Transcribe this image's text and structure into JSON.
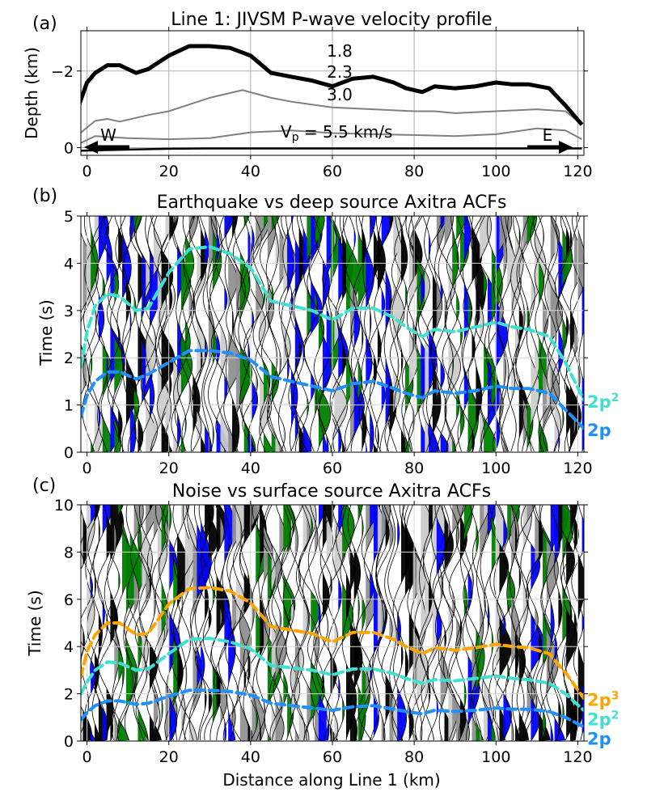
{
  "chart_data": [
    {
      "panel": "(a)",
      "type": "line",
      "title": "Line 1: JIVSM P-wave velocity profile",
      "ylabel": "Depth (km)",
      "xlabel": "",
      "xlim": [
        -1.5,
        121.5
      ],
      "ylim": [
        -3.05,
        0.2
      ],
      "xticks": [
        0,
        20,
        40,
        60,
        80,
        100,
        120
      ],
      "yticks": [
        0,
        -2
      ],
      "grid": true,
      "annotations": {
        "west": "W",
        "east": "E",
        "vp_prefix": "V",
        "vp_sub": "p",
        "vp_suffix": " = 5.5 km/s"
      },
      "series": [
        {
          "label": "1.8",
          "color": "#000000",
          "x": [
            -2,
            10,
            20,
            30,
            40,
            50,
            60,
            70,
            80,
            90,
            100,
            110,
            121
          ],
          "y": [
            0.08,
            0.05,
            0.03,
            0.02,
            0.02,
            0.02,
            0.02,
            0.02,
            0.02,
            0.02,
            0.02,
            0.02,
            0.02
          ]
        },
        {
          "label": "",
          "color": "#808080",
          "x": [
            -2,
            2,
            10,
            20,
            30,
            40,
            50,
            60,
            70,
            80,
            90,
            100,
            110,
            117,
            121
          ],
          "y": [
            -0.1,
            -0.3,
            -0.25,
            -0.22,
            -0.25,
            -0.4,
            -0.45,
            -0.38,
            -0.35,
            -0.33,
            -0.3,
            -0.35,
            -0.5,
            -0.45,
            -0.22
          ]
        },
        {
          "label": "2.3",
          "color": "#808080",
          "x": [
            -2,
            2,
            5,
            8,
            15,
            20,
            30,
            38,
            45,
            50,
            60,
            70,
            80,
            85,
            90,
            100,
            110,
            117,
            121
          ],
          "y": [
            -0.35,
            -0.7,
            -0.75,
            -0.68,
            -0.85,
            -0.95,
            -1.3,
            -1.5,
            -1.3,
            -1.2,
            -1.05,
            -1.0,
            -0.95,
            -0.95,
            -0.9,
            -0.95,
            -1.0,
            -0.95,
            -0.6
          ]
        },
        {
          "label": "3.0",
          "color": "#000000",
          "x": [
            -2,
            0,
            2,
            5,
            8,
            12,
            15,
            20,
            25,
            30,
            35,
            40,
            45,
            50,
            55,
            60,
            65,
            70,
            75,
            78,
            82,
            85,
            90,
            95,
            100,
            104,
            108,
            113,
            117,
            121
          ],
          "y": [
            -1.1,
            -1.7,
            -1.95,
            -2.15,
            -2.15,
            -1.95,
            -2.05,
            -2.4,
            -2.65,
            -2.65,
            -2.6,
            -2.4,
            -1.95,
            -1.85,
            -1.75,
            -1.6,
            -1.8,
            -1.85,
            -1.7,
            -1.55,
            -1.45,
            -1.6,
            -1.55,
            -1.6,
            -1.7,
            -1.65,
            -1.65,
            -1.55,
            -1.1,
            -0.6
          ]
        }
      ]
    },
    {
      "panel": "(b)",
      "type": "line",
      "title": "Earthquake vs deep source Axitra ACFs",
      "ylabel": "Time (s)",
      "xlabel": "",
      "xlim": [
        -1.5,
        121.5
      ],
      "ylim": [
        5,
        0
      ],
      "xticks": [
        0,
        20,
        40,
        60,
        80,
        100,
        120
      ],
      "yticks": [
        0,
        1,
        2,
        3,
        4,
        5
      ],
      "grid": true,
      "series": [
        {
          "label": "2p",
          "sup": "",
          "color": "#1e90ff",
          "x": [
            -1.5,
            0,
            2,
            5,
            8,
            12,
            15,
            20,
            25,
            30,
            35,
            40,
            45,
            50,
            55,
            60,
            65,
            70,
            75,
            78,
            82,
            85,
            90,
            95,
            100,
            104,
            108,
            113,
            117,
            121.5
          ],
          "y": [
            0.75,
            1.2,
            1.5,
            1.7,
            1.7,
            1.55,
            1.65,
            1.9,
            2.15,
            2.15,
            2.1,
            1.95,
            1.6,
            1.5,
            1.4,
            1.3,
            1.45,
            1.5,
            1.35,
            1.25,
            1.15,
            1.3,
            1.25,
            1.3,
            1.4,
            1.35,
            1.35,
            1.25,
            0.9,
            0.5
          ]
        },
        {
          "label": "2p",
          "sup": "2",
          "color": "#40e0d0",
          "x": [
            -1.5,
            0,
            2,
            5,
            8,
            12,
            15,
            20,
            25,
            30,
            35,
            40,
            45,
            50,
            55,
            60,
            65,
            70,
            75,
            78,
            82,
            85,
            90,
            95,
            100,
            104,
            108,
            113,
            117,
            121.5
          ],
          "y": [
            1.8,
            2.55,
            3.1,
            3.35,
            3.3,
            3.0,
            3.05,
            3.8,
            4.3,
            4.35,
            4.2,
            3.9,
            3.2,
            3.1,
            3.0,
            2.8,
            3.05,
            3.05,
            2.85,
            2.65,
            2.45,
            2.6,
            2.55,
            2.65,
            2.75,
            2.65,
            2.6,
            2.45,
            1.9,
            1.1
          ]
        }
      ]
    },
    {
      "panel": "(c)",
      "type": "line",
      "title": "Noise vs surface source Axitra ACFs",
      "ylabel": "Time (s)",
      "xlabel": "Distance along Line 1 (km)",
      "xlim": [
        -1.5,
        121.5
      ],
      "ylim": [
        10,
        0
      ],
      "xticks": [
        0,
        20,
        40,
        60,
        80,
        100,
        120
      ],
      "yticks": [
        0,
        2,
        4,
        6,
        8,
        10
      ],
      "grid": true,
      "series": [
        {
          "label": "2p",
          "sup": "",
          "color": "#1e90ff",
          "x": [
            -1.5,
            0,
            2,
            5,
            8,
            12,
            15,
            20,
            25,
            30,
            35,
            40,
            45,
            50,
            55,
            60,
            65,
            70,
            75,
            78,
            82,
            85,
            90,
            95,
            100,
            104,
            108,
            113,
            117,
            121.5
          ],
          "y": [
            0.9,
            1.2,
            1.5,
            1.7,
            1.7,
            1.55,
            1.6,
            1.9,
            2.15,
            2.15,
            2.1,
            1.95,
            1.6,
            1.5,
            1.4,
            1.3,
            1.45,
            1.5,
            1.35,
            1.25,
            1.15,
            1.3,
            1.25,
            1.3,
            1.4,
            1.35,
            1.35,
            1.25,
            1.0,
            0.6
          ]
        },
        {
          "label": "2p",
          "sup": "2",
          "color": "#40e0d0",
          "x": [
            -1.5,
            0,
            2,
            5,
            8,
            12,
            15,
            20,
            25,
            30,
            35,
            40,
            45,
            50,
            55,
            60,
            65,
            70,
            75,
            78,
            82,
            85,
            90,
            95,
            100,
            104,
            108,
            113,
            117,
            121.5
          ],
          "y": [
            2.0,
            2.5,
            3.0,
            3.35,
            3.3,
            3.0,
            3.05,
            3.7,
            4.3,
            4.35,
            4.2,
            3.9,
            3.2,
            3.1,
            3.0,
            2.8,
            3.05,
            3.05,
            2.85,
            2.65,
            2.45,
            2.6,
            2.55,
            2.65,
            2.75,
            2.65,
            2.6,
            2.45,
            2.0,
            1.3
          ]
        },
        {
          "label": "2p",
          "sup": "3",
          "color": "#ffa500",
          "x": [
            -1.5,
            0,
            2,
            5,
            8,
            12,
            15,
            20,
            25,
            30,
            35,
            40,
            45,
            50,
            55,
            60,
            65,
            70,
            75,
            78,
            82,
            85,
            90,
            95,
            100,
            104,
            108,
            113,
            117,
            121.5
          ],
          "y": [
            2.7,
            3.8,
            4.5,
            5.0,
            5.0,
            4.5,
            4.55,
            5.8,
            6.45,
            6.5,
            6.35,
            5.85,
            4.85,
            4.7,
            4.55,
            4.2,
            4.6,
            4.6,
            4.3,
            4.0,
            3.7,
            3.95,
            3.85,
            3.95,
            4.1,
            4.0,
            3.95,
            3.7,
            2.9,
            1.8
          ]
        }
      ]
    }
  ],
  "seismic_style": {
    "trace_count": 128,
    "fill_colors": [
      "#000000",
      "#0000ff",
      "#008000",
      "#909090",
      "#cccccc"
    ]
  }
}
